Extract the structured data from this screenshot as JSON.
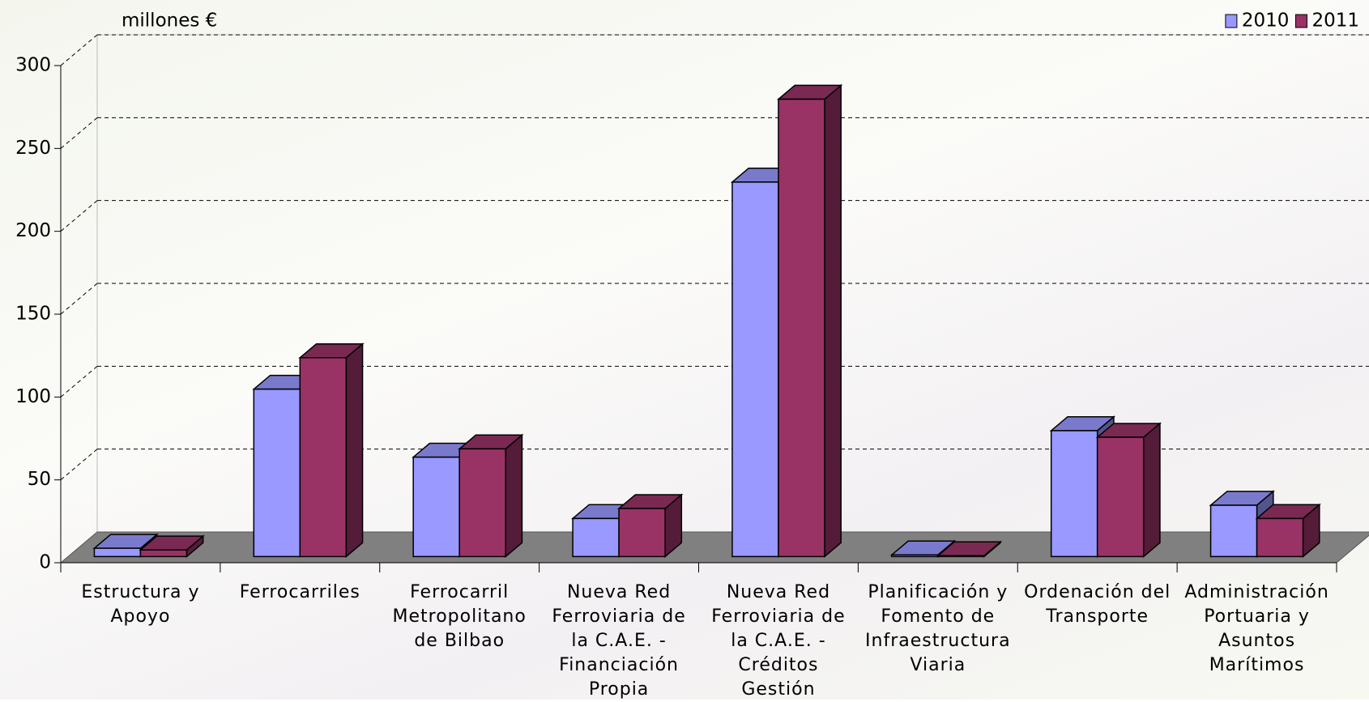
{
  "chart_data": {
    "type": "bar3d",
    "y_label": "millones €",
    "categories": [
      "Estructura y Apoyo",
      "Ferrocarriles",
      "Ferrocarril Metropolitano de Bilbao",
      "Nueva Red Ferroviaria de la C.A.E. - Financiación Propia",
      "Nueva Red Ferroviaria de la C.A.E. - Créditos Gestión",
      "Planificación y Fomento de Infraestructura Viaria",
      "Ordenación del Transporte",
      "Administración Portuaria y Asuntos Marítimos"
    ],
    "series": [
      {
        "name": "2010",
        "color": "#9999ff",
        "values": [
          5,
          101,
          60,
          23,
          226,
          1,
          76,
          31
        ]
      },
      {
        "name": "2011",
        "color": "#993366",
        "values": [
          4,
          120,
          65,
          29,
          276,
          0.5,
          72,
          23
        ]
      }
    ],
    "ylim": [
      0,
      300
    ],
    "yticks": [
      0,
      50,
      100,
      150,
      200,
      250,
      300
    ],
    "grid": true,
    "legend": "top-right"
  }
}
